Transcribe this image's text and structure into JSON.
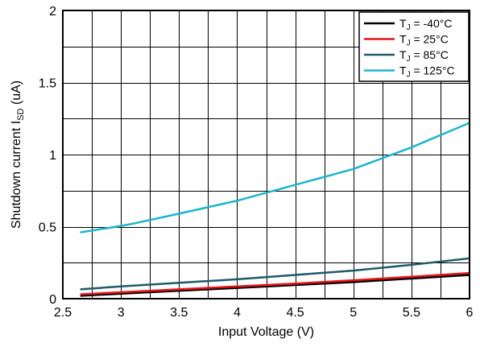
{
  "chart_data": {
    "type": "line",
    "title": "",
    "xlabel": "Input Voltage (V)",
    "ylabel": {
      "prefix": "Shutdown current I",
      "subscript": "SD",
      "suffix": " (uA)"
    },
    "xlim": [
      2.5,
      6
    ],
    "ylim": [
      0,
      2
    ],
    "x_major_ticks": [
      2.5,
      3,
      3.5,
      4,
      4.5,
      5,
      5.5,
      6
    ],
    "x_tick_labels": [
      "2.5",
      "3",
      "3.5",
      "4",
      "4.5",
      "5",
      "5.5",
      "6"
    ],
    "y_major_ticks": [
      0,
      0.5,
      1,
      1.5,
      2
    ],
    "y_tick_labels": [
      "0",
      "0.5",
      "1",
      "1.5",
      "2"
    ],
    "grid": true,
    "grid_x_step": 0.25,
    "grid_y_step": 0.25,
    "legend_position": "top-right",
    "series": [
      {
        "name": "T<sub>J</sub> = -40°C",
        "legend_parts": [
          "T",
          "J",
          " = -40°C"
        ],
        "color": "#000000",
        "x": [
          2.65,
          3,
          3.5,
          4,
          4.5,
          5,
          5.5,
          6
        ],
        "y": [
          0.02,
          0.035,
          0.055,
          0.075,
          0.095,
          0.115,
          0.14,
          0.165
        ]
      },
      {
        "name": "T<sub>J</sub> = 25°C",
        "legend_parts": [
          "T",
          "J",
          " =  25°C"
        ],
        "color": "#e8151b",
        "x": [
          2.65,
          3,
          3.5,
          4,
          4.5,
          5,
          5.5,
          6
        ],
        "y": [
          0.03,
          0.045,
          0.065,
          0.085,
          0.105,
          0.128,
          0.152,
          0.178
        ]
      },
      {
        "name": "T<sub>J</sub> = 85°C",
        "legend_parts": [
          "T",
          "J",
          " =  85°C"
        ],
        "color": "#1f5a6a",
        "x": [
          2.65,
          3,
          3.5,
          4,
          4.5,
          5,
          5.5,
          6
        ],
        "y": [
          0.065,
          0.085,
          0.11,
          0.135,
          0.165,
          0.195,
          0.235,
          0.28
        ]
      },
      {
        "name": "T<sub>J</sub> = 125°C",
        "legend_parts": [
          "T",
          "J",
          " = 125°C"
        ],
        "color": "#1cb5cc",
        "x": [
          2.65,
          3,
          3.1,
          3.5,
          4,
          4.5,
          5,
          5.5,
          6
        ],
        "y": [
          0.46,
          0.505,
          0.52,
          0.59,
          0.68,
          0.79,
          0.9,
          1.05,
          1.22
        ]
      }
    ]
  }
}
